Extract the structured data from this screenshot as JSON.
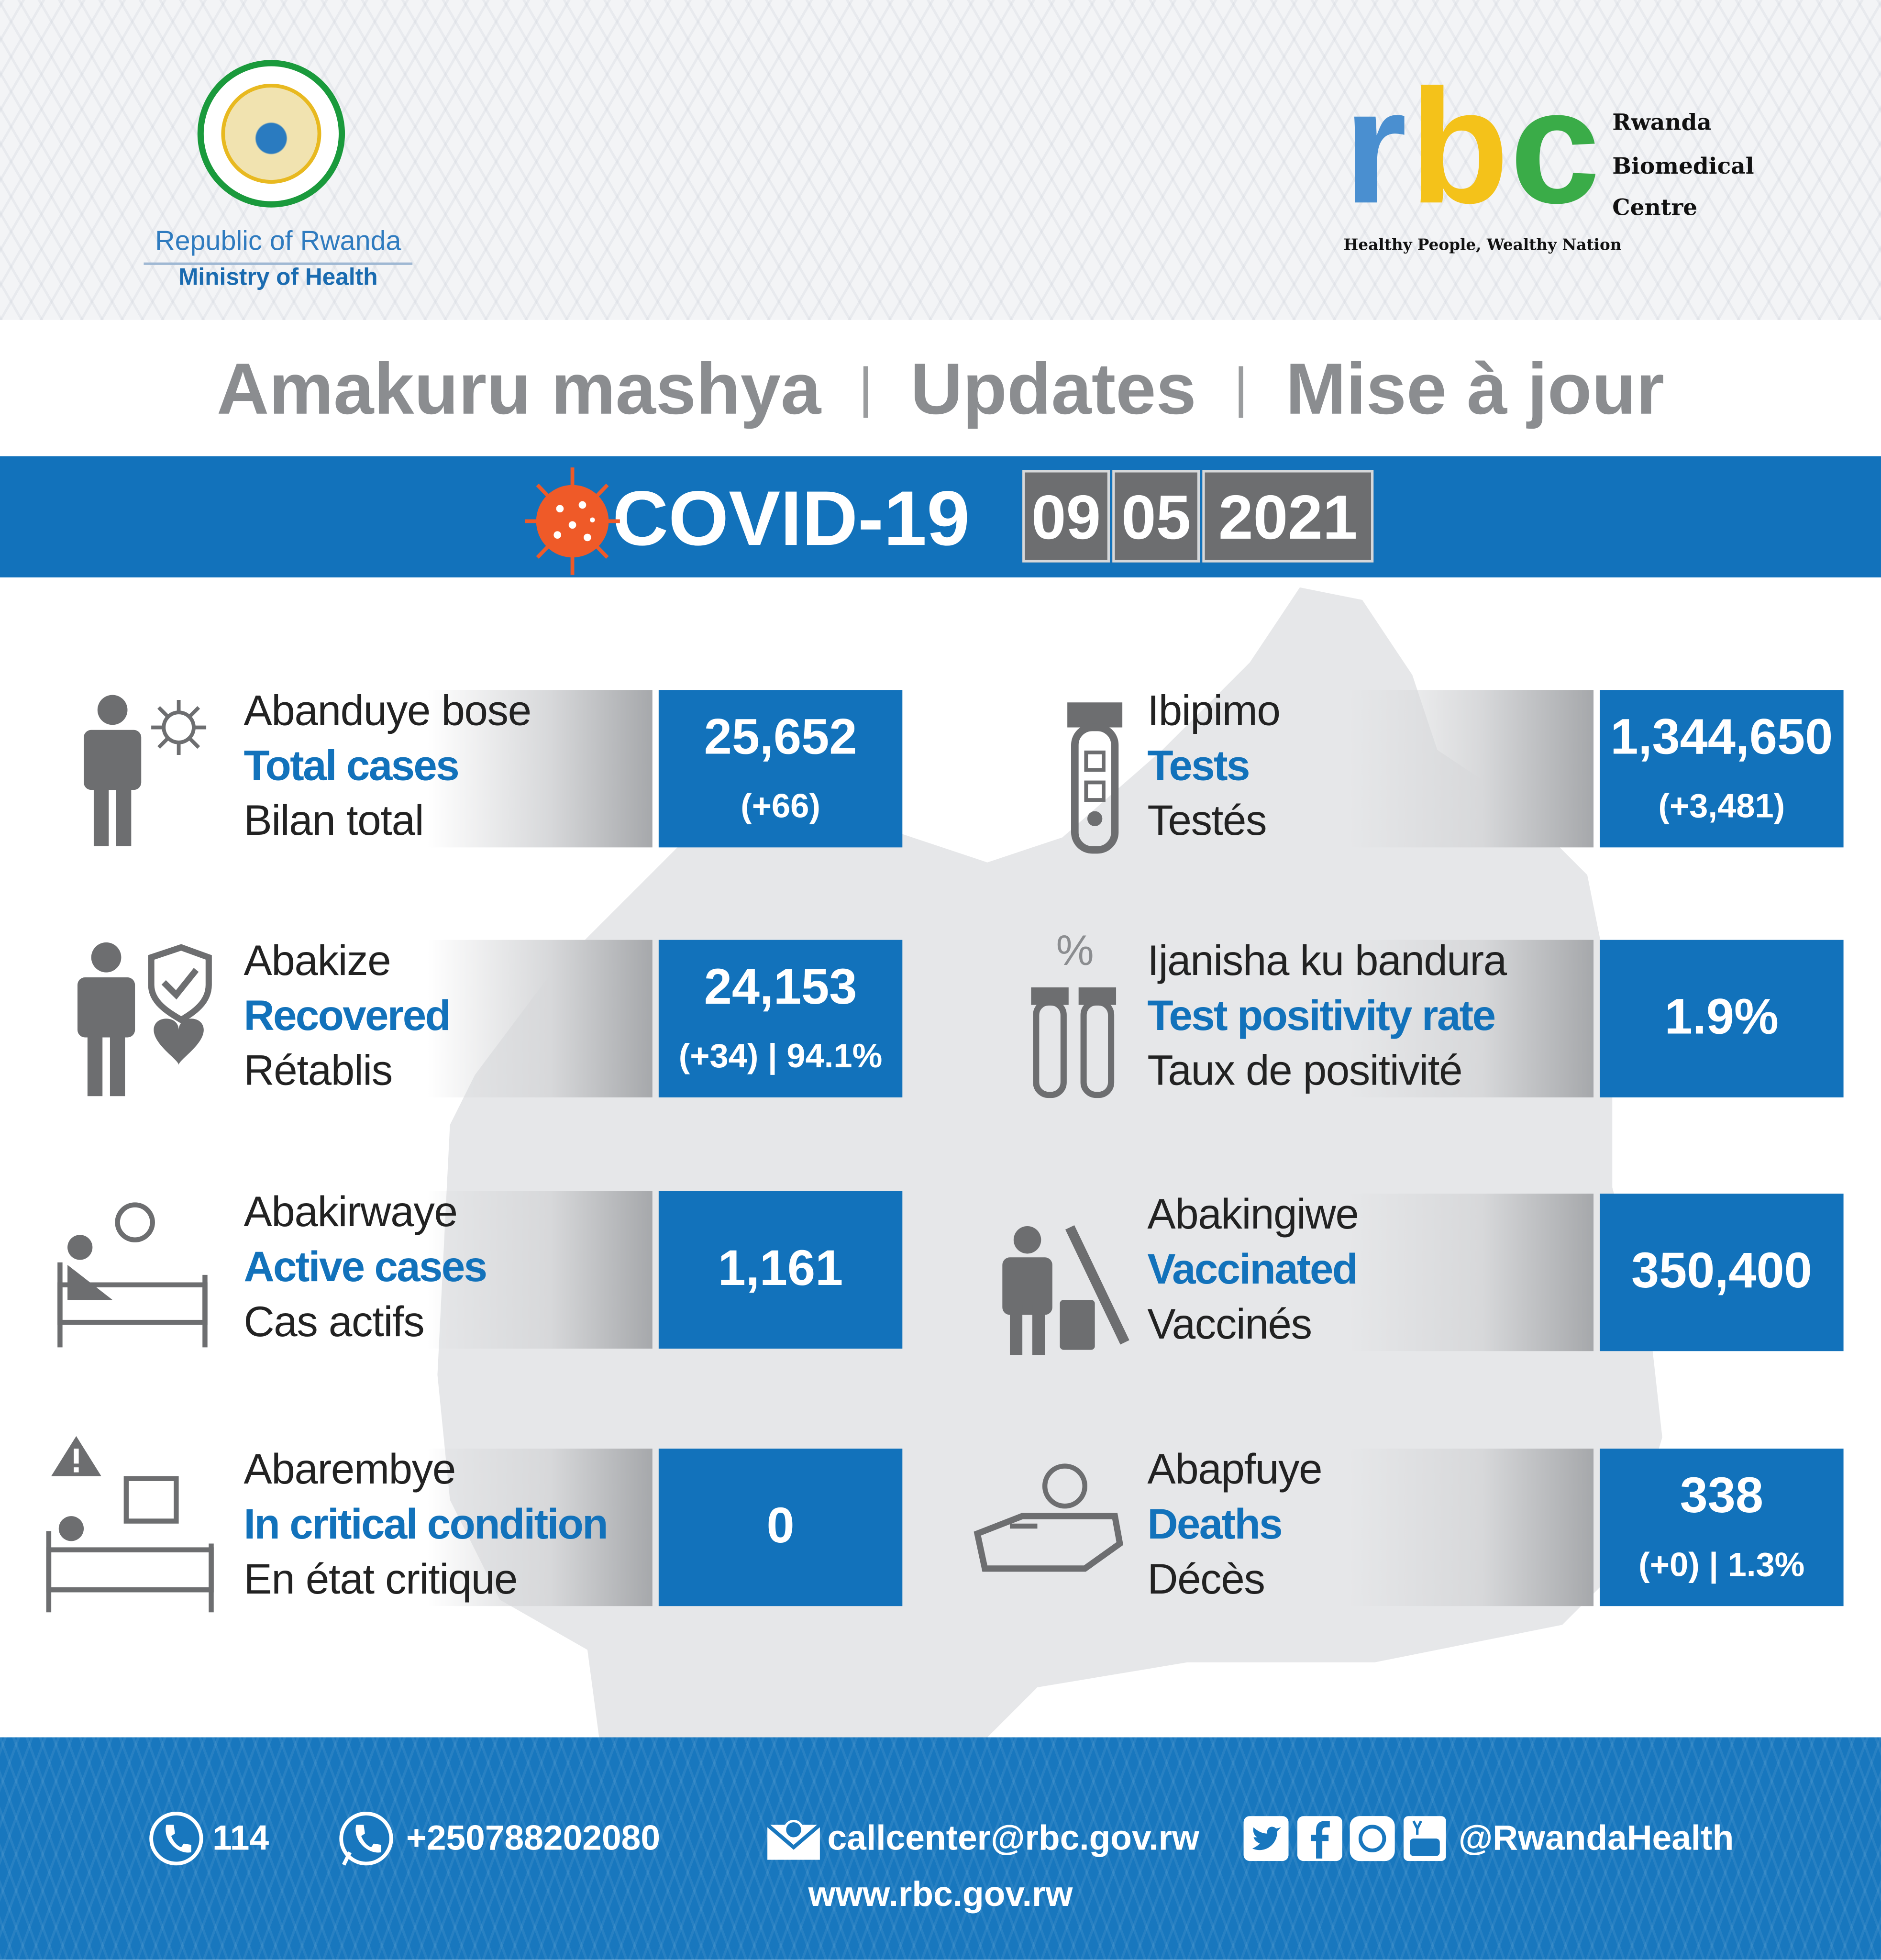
{
  "header": {
    "left_logo": {
      "line1": "Republic of Rwanda",
      "line2": "Ministry of Health"
    },
    "right_logo": {
      "letters": [
        "r",
        "b",
        "c"
      ],
      "name_lines": [
        "Rwanda",
        "Biomedical",
        "Centre"
      ],
      "tagline": "Healthy People, Wealthy Nation",
      "colors": {
        "r": "#4a8fd0",
        "b": "#f4c21a",
        "c": "#3aac48"
      }
    }
  },
  "title": {
    "kinyarwanda": "Amakuru mashya",
    "english": "Updates",
    "french": "Mise à jour",
    "separator": "|"
  },
  "banner": {
    "label": "COVID-19",
    "date": {
      "day": "09",
      "month": "05",
      "year": "2021"
    },
    "icon": "coronavirus-icon"
  },
  "stats_left": [
    {
      "rw": "Abanduye bose",
      "en": "Total cases",
      "fr": "Bilan total",
      "value": "25,652",
      "sub": "(+66)",
      "icon": "person-virus-icon"
    },
    {
      "rw": "Abakize",
      "en": "Recovered",
      "fr": "Rétablis",
      "value": "24,153",
      "sub": "(+34) | 94.1%",
      "icon": "person-shield-heart-icon"
    },
    {
      "rw": "Abakirwaye",
      "en": "Active cases",
      "fr": "Cas actifs",
      "value": "1,161",
      "sub": "",
      "icon": "patient-bed-icon"
    },
    {
      "rw": "Abarembye",
      "en": "In critical condition",
      "fr": "En état critique",
      "value": "0",
      "sub": "",
      "icon": "icu-bed-warning-icon"
    }
  ],
  "stats_right": [
    {
      "rw": "Ibipimo",
      "en": "Tests",
      "fr": "Testés",
      "value": "1,344,650",
      "sub": "(+3,481)",
      "icon": "test-tube-icon"
    },
    {
      "rw": "Ijanisha ku bandura",
      "en": "Test positivity rate",
      "fr": "Taux de positivité",
      "value": "1.9%",
      "sub": "",
      "icon": "percent-test-tubes-icon",
      "icon_text": "%"
    },
    {
      "rw": "Abakingiwe",
      "en": "Vaccinated",
      "fr": "Vaccinés",
      "value": "350,400",
      "sub": "",
      "icon": "person-syringe-icon"
    },
    {
      "rw": "Abapfuye",
      "en": "Deaths",
      "fr": "Décès",
      "value": "338",
      "sub": "(+0) | 1.3%",
      "icon": "coffin-virus-icon"
    }
  ],
  "footer": {
    "hotline": "114",
    "whatsapp": "+250788202080",
    "email": "callcenter@rbc.gov.rw",
    "social_handle": "@RwandaHealth",
    "website": "www.rbc.gov.rw",
    "social_icons": [
      "twitter-icon",
      "facebook-icon",
      "instagram-icon",
      "youtube-icon"
    ]
  },
  "colors": {
    "brand_blue": "#1272bb",
    "title_gray": "#8b8d90",
    "map_gray": "#e6e7e9",
    "date_box": "#6d6e70"
  }
}
